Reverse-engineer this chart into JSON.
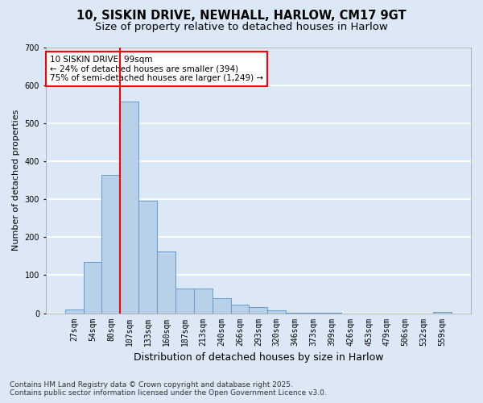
{
  "title1": "10, SISKIN DRIVE, NEWHALL, HARLOW, CM17 9GT",
  "title2": "Size of property relative to detached houses in Harlow",
  "xlabel": "Distribution of detached houses by size in Harlow",
  "ylabel": "Number of detached properties",
  "categories": [
    "27sqm",
    "54sqm",
    "80sqm",
    "107sqm",
    "133sqm",
    "160sqm",
    "187sqm",
    "213sqm",
    "240sqm",
    "266sqm",
    "293sqm",
    "320sqm",
    "346sqm",
    "373sqm",
    "399sqm",
    "426sqm",
    "453sqm",
    "479sqm",
    "506sqm",
    "532sqm",
    "559sqm"
  ],
  "values": [
    10,
    135,
    365,
    557,
    297,
    163,
    65,
    65,
    40,
    22,
    15,
    8,
    2,
    1,
    1,
    0,
    0,
    0,
    0,
    0,
    3
  ],
  "bar_color": "#b8d0e8",
  "bar_edge_color": "#6699cc",
  "vline_color": "red",
  "vline_index": 3,
  "annotation_title": "10 SISKIN DRIVE: 99sqm",
  "annotation_line2": "← 24% of detached houses are smaller (394)",
  "annotation_line3": "75% of semi-detached houses are larger (1,249) →",
  "annotation_box_color": "red",
  "annotation_bg": "white",
  "ylim": [
    0,
    700
  ],
  "yticks": [
    0,
    100,
    200,
    300,
    400,
    500,
    600,
    700
  ],
  "footnote1": "Contains HM Land Registry data © Crown copyright and database right 2025.",
  "footnote2": "Contains public sector information licensed under the Open Government Licence v3.0.",
  "bg_color": "#dce8f5",
  "plot_bg_color": "#dce8f5",
  "grid_color": "white",
  "title_fontsize": 10.5,
  "subtitle_fontsize": 9.5,
  "ylabel_fontsize": 8,
  "xlabel_fontsize": 9,
  "tick_fontsize": 7,
  "annot_fontsize": 7.5,
  "footnote_fontsize": 6.5
}
